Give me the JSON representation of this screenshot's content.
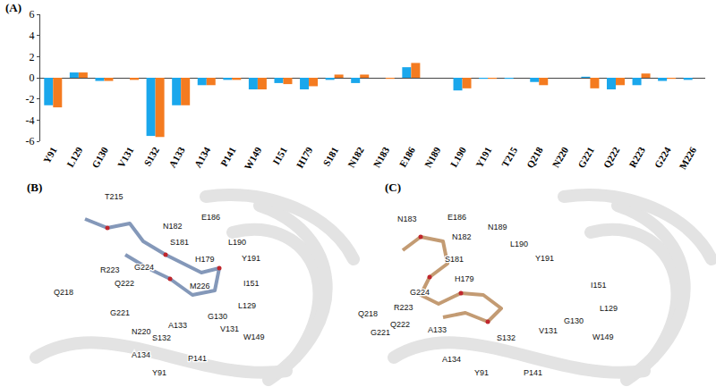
{
  "chart_data": {
    "type": "bar",
    "categories": [
      "Y91",
      "L129",
      "G130",
      "V131",
      "S132",
      "A133",
      "A134",
      "P141",
      "W149",
      "I151",
      "H179",
      "S181",
      "N182",
      "N183",
      "E186",
      "N189",
      "L190",
      "Y191",
      "T215",
      "Q218",
      "N220",
      "G221",
      "Q222",
      "R223",
      "G224",
      "M226"
    ],
    "series": [
      {
        "color": "#1aa7ec",
        "values": [
          -2.6,
          0.5,
          -0.3,
          0,
          -5.5,
          -2.6,
          -0.7,
          -0.2,
          -1.1,
          -0.5,
          -1.1,
          -0.2,
          -0.5,
          0,
          1.0,
          0,
          -1.2,
          -0.1,
          -0.1,
          -0.4,
          0,
          0.1,
          -1.1,
          -0.7,
          -0.3,
          -0.2
        ]
      },
      {
        "color": "#f47b20",
        "values": [
          -2.8,
          0.5,
          -0.3,
          -0.2,
          -5.6,
          -2.6,
          -0.7,
          -0.2,
          -1.1,
          -0.6,
          -0.8,
          0.3,
          0.3,
          -0.1,
          1.4,
          0,
          -1.0,
          -0.1,
          0,
          -0.7,
          0,
          -1.0,
          -0.7,
          0.4,
          -0.1,
          0
        ]
      }
    ],
    "ylim": [
      -6,
      6
    ],
    "yticks": [
      -6,
      -4,
      -2,
      0,
      2,
      4,
      6
    ],
    "grid": false
  },
  "panel_label": "(A)",
  "structures": [
    {
      "label": "(B)",
      "residues": [
        "T215",
        "N182",
        "E186",
        "S181",
        "L190",
        "Y191",
        "H179",
        "I151",
        "L129",
        "R223",
        "G224",
        "Q222",
        "M226",
        "Q218",
        "G221",
        "G130",
        "V131",
        "W149",
        "A133",
        "S132",
        "N220",
        "P141",
        "A134",
        "Y91"
      ]
    },
    {
      "label": "(C)",
      "residues": [
        "N183",
        "E186",
        "N189",
        "N182",
        "L190",
        "S181",
        "Y191",
        "H179",
        "I151",
        "R223",
        "G224",
        "Q222",
        "Q218",
        "G221",
        "L129",
        "G130",
        "V131",
        "W149",
        "S132",
        "A133",
        "A134",
        "Y91",
        "P141"
      ]
    }
  ]
}
